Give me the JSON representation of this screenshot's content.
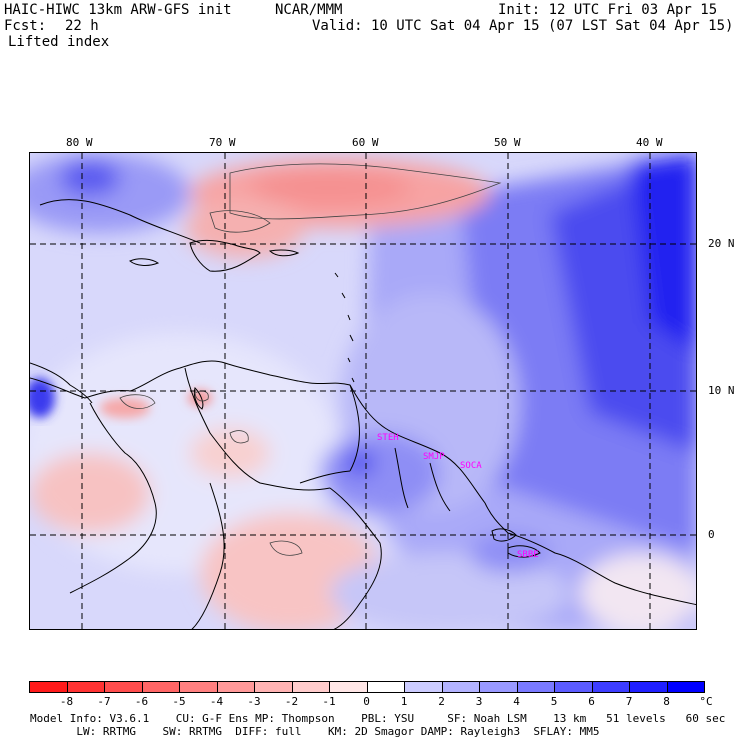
{
  "header": {
    "model_title": "HAIC-HIWC 13km ARW-GFS init",
    "org": "NCAR/MMM",
    "init_text": "Init: 12 UTC Fri 03 Apr 15",
    "fcst_label": "Fcst:",
    "fcst_value": "22 h",
    "valid_text": "Valid: 10 UTC Sat 04 Apr 15 (07 LST Sat 04 Apr 15)",
    "field_name": "Lifted index"
  },
  "map": {
    "lon_labels": [
      "80 W",
      "70 W",
      "60 W",
      "50 W",
      "40 W"
    ],
    "lat_labels": [
      "20 N",
      "10 N",
      "0"
    ],
    "stations": [
      "STEH",
      "SMJP",
      "SOCA",
      "SBBE"
    ]
  },
  "colorbar": {
    "unit": "°C",
    "tick_labels": [
      "-8",
      "-7",
      "-6",
      "-5",
      "-4",
      "-3",
      "-2",
      "-1",
      "0",
      "1",
      "2",
      "3",
      "4",
      "5",
      "6",
      "7",
      "8"
    ],
    "colors": [
      "#ff1a1a",
      "#ff3333",
      "#ff4d4d",
      "#ff6666",
      "#ff8080",
      "#ff9999",
      "#ffb3b3",
      "#ffcccc",
      "#ffe6e6",
      "#ffffff",
      "#ccccff",
      "#b3b3ff",
      "#9999ff",
      "#7a7aff",
      "#5c5cff",
      "#3d3dff",
      "#1f1fff",
      "#0000ff"
    ]
  },
  "footer": {
    "line1": "Model Info: V3.6.1    CU: G-F Ens MP: Thompson    PBL: YSU     SF: Noah LSM    13 km   51 levels   60 sec",
    "line2": "       LW: RRTMG    SW: RRTMG  DIFF: full    KM: 2D Smagor DAMP: Rayleigh3  SFLAY: MM5"
  }
}
